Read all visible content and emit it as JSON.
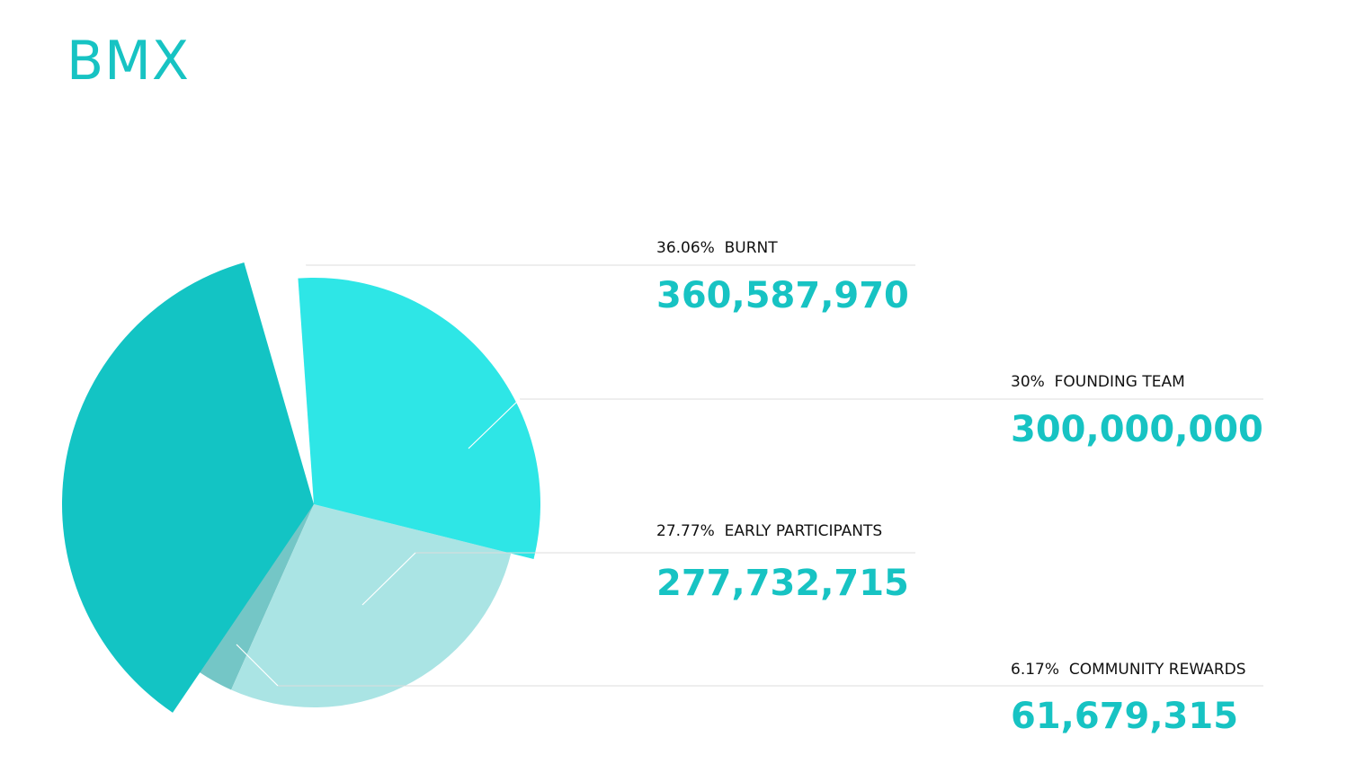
{
  "title": "BMX",
  "colors": {
    "title": "#17c3c3",
    "value_text": "#17c3c3"
  },
  "chart_data": {
    "type": "pie",
    "title": "BMX",
    "slices": [
      {
        "label": "BURNT",
        "percent_label": "36.06%",
        "value_label": "360,587,970",
        "value": 360587970,
        "color": "#13c4c4"
      },
      {
        "label": "FOUNDING TEAM",
        "percent_label": "30%",
        "value_label": "300,000,000",
        "value": 300000000,
        "color": "#2ee6e6"
      },
      {
        "label": "EARLY PARTICIPANTS",
        "percent_label": "27.77%",
        "value_label": "277,732,715",
        "value": 277732715,
        "color": "#aae4e4"
      },
      {
        "label": "COMMUNITY REWARDS",
        "percent_label": "6.17%",
        "value_label": "61,679,315",
        "value": 61679315,
        "color": "#74c6c6"
      }
    ]
  }
}
